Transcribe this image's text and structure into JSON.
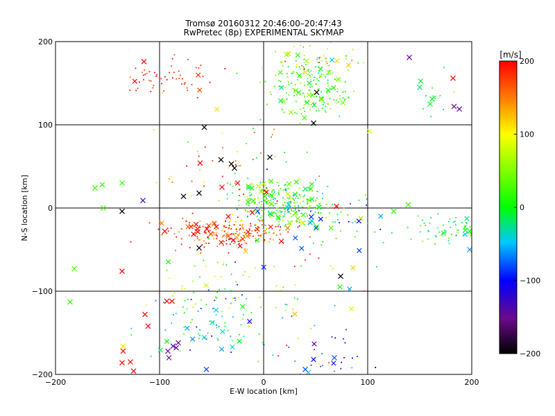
{
  "chart_data": {
    "type": "scatter",
    "title": "Tromsø 20160312 20:46:00–20:47:43",
    "subtitle": "RwPretec (8p) EXPERIMENTAL SKYMAP",
    "xlabel": "E-W location [km]",
    "ylabel": "N-S location [km]",
    "xlim": [
      -200,
      200
    ],
    "ylim": [
      -200,
      200
    ],
    "x_ticks": [
      -200,
      -100,
      0,
      100,
      200
    ],
    "y_ticks": [
      -200,
      -100,
      0,
      100,
      200
    ],
    "grid": true,
    "colorbar": {
      "label": "[m/s]",
      "range": [
        -200,
        200
      ],
      "ticks": [
        200,
        100,
        0,
        -100,
        -200
      ],
      "colormap": [
        "#000000",
        "#6a0a8a",
        "#0000ff",
        "#00c8ff",
        "#00ff00",
        "#ffff00",
        "#ff8000",
        "#ff0000"
      ]
    },
    "marker_types": [
      "small-dot",
      "x-cross"
    ],
    "clusters": [
      {
        "center": [
          -90,
          158
        ],
        "spread": [
          25,
          10
        ],
        "count": 55,
        "velocity": 185,
        "vspread": 20
      },
      {
        "center": [
          45,
          145
        ],
        "spread": [
          20,
          18
        ],
        "count": 170,
        "velocity": 25,
        "vspread": 30
      },
      {
        "center": [
          50,
          178
        ],
        "spread": [
          25,
          12
        ],
        "count": 45,
        "velocity": 60,
        "vspread": 60
      },
      {
        "center": [
          15,
          5
        ],
        "spread": [
          22,
          14
        ],
        "count": 290,
        "velocity": 15,
        "vspread": 45
      },
      {
        "center": [
          -35,
          -30
        ],
        "spread": [
          30,
          10
        ],
        "count": 210,
        "velocity": 175,
        "vspread": 35
      },
      {
        "center": [
          60,
          -15
        ],
        "spread": [
          25,
          12
        ],
        "count": 55,
        "velocity": -30,
        "vspread": 70
      },
      {
        "center": [
          175,
          -28
        ],
        "spread": [
          22,
          8
        ],
        "count": 65,
        "velocity": -5,
        "vspread": 25
      },
      {
        "center": [
          -45,
          -140
        ],
        "spread": [
          30,
          22
        ],
        "count": 90,
        "velocity": -40,
        "vspread": 40
      },
      {
        "center": [
          -65,
          -90
        ],
        "spread": [
          20,
          20
        ],
        "count": 30,
        "velocity": 55,
        "vspread": 40
      },
      {
        "center": [
          70,
          -180
        ],
        "spread": [
          20,
          15
        ],
        "count": 25,
        "velocity": -110,
        "vspread": 50
      },
      {
        "center": [
          30,
          -100
        ],
        "spread": [
          40,
          40
        ],
        "count": 55,
        "velocity": 70,
        "vspread": 80
      },
      {
        "center": [
          -40,
          40
        ],
        "spread": [
          25,
          20
        ],
        "count": 30,
        "velocity": 150,
        "vspread": 70
      },
      {
        "center": [
          0,
          80
        ],
        "spread": [
          40,
          40
        ],
        "count": 25,
        "velocity": 50,
        "vspread": 60
      },
      {
        "center": [
          160,
          130
        ],
        "spread": [
          20,
          15
        ],
        "count": 12,
        "velocity": 10,
        "vspread": 20
      }
    ],
    "crosses": [
      {
        "x": -57,
        "y": 97,
        "v": -200
      },
      {
        "x": -41,
        "y": 58,
        "v": -200
      },
      {
        "x": -31,
        "y": 53,
        "v": -200
      },
      {
        "x": -28,
        "y": 48,
        "v": -200
      },
      {
        "x": 6,
        "y": 61,
        "v": -200
      },
      {
        "x": -62,
        "y": 18,
        "v": -200
      },
      {
        "x": -136,
        "y": -4,
        "v": -200
      },
      {
        "x": -77,
        "y": 14,
        "v": -200
      },
      {
        "x": -62,
        "y": -48,
        "v": -200
      },
      {
        "x": 48,
        "y": 102,
        "v": -200
      },
      {
        "x": 74,
        "y": -82,
        "v": -200
      },
      {
        "x": 51,
        "y": 139,
        "v": -200
      },
      {
        "x": 140,
        "y": 181,
        "v": -150
      },
      {
        "x": 183,
        "y": 122,
        "v": -150
      },
      {
        "x": 188,
        "y": 119,
        "v": -140
      },
      {
        "x": -116,
        "y": 9,
        "v": -130
      },
      {
        "x": -115,
        "y": 176,
        "v": 200
      },
      {
        "x": 182,
        "y": 156,
        "v": 200
      },
      {
        "x": -61,
        "y": 54,
        "v": 200
      },
      {
        "x": -25,
        "y": 30,
        "v": 200
      },
      {
        "x": -40,
        "y": 25,
        "v": 200
      },
      {
        "x": -136,
        "y": -76,
        "v": 200
      },
      {
        "x": -135,
        "y": -172,
        "v": 200
      },
      {
        "x": -136,
        "y": -186,
        "v": 200
      },
      {
        "x": -128,
        "y": -185,
        "v": 200
      },
      {
        "x": -125,
        "y": -196,
        "v": 200
      },
      {
        "x": -114,
        "y": -128,
        "v": 200
      },
      {
        "x": -111,
        "y": -142,
        "v": 200
      },
      {
        "x": -93,
        "y": -112,
        "v": 200
      },
      {
        "x": -88,
        "y": -112,
        "v": 200
      },
      {
        "x": -95,
        "y": -28,
        "v": 200
      },
      {
        "x": 17,
        "y": -40,
        "v": 200
      },
      {
        "x": 70,
        "y": 2,
        "v": 200
      },
      {
        "x": -162,
        "y": 24,
        "v": 20
      },
      {
        "x": -155,
        "y": 28,
        "v": 20
      },
      {
        "x": -136,
        "y": 30,
        "v": 20
      },
      {
        "x": -186,
        "y": -113,
        "v": 20
      },
      {
        "x": -182,
        "y": -73,
        "v": 30
      },
      {
        "x": -154,
        "y": 0,
        "v": 20
      },
      {
        "x": 125,
        "y": -4,
        "v": 20
      },
      {
        "x": 139,
        "y": 4,
        "v": 20
      },
      {
        "x": 160,
        "y": 125,
        "v": -10
      },
      {
        "x": 162,
        "y": 131,
        "v": -10
      },
      {
        "x": 150,
        "y": 145,
        "v": -20
      },
      {
        "x": 198,
        "y": -28,
        "v": 0
      },
      {
        "x": 198,
        "y": -50,
        "v": -60
      },
      {
        "x": -92,
        "y": -172,
        "v": -150
      },
      {
        "x": -91,
        "y": -180,
        "v": -150
      },
      {
        "x": -87,
        "y": -166,
        "v": -140
      },
      {
        "x": -84,
        "y": -168,
        "v": -140
      },
      {
        "x": -82,
        "y": -162,
        "v": -150
      },
      {
        "x": -55,
        "y": -194,
        "v": -80
      },
      {
        "x": 68,
        "y": -180,
        "v": -80
      },
      {
        "x": 40,
        "y": -194,
        "v": -80
      },
      {
        "x": -135,
        "y": -166,
        "v": 110
      }
    ]
  }
}
